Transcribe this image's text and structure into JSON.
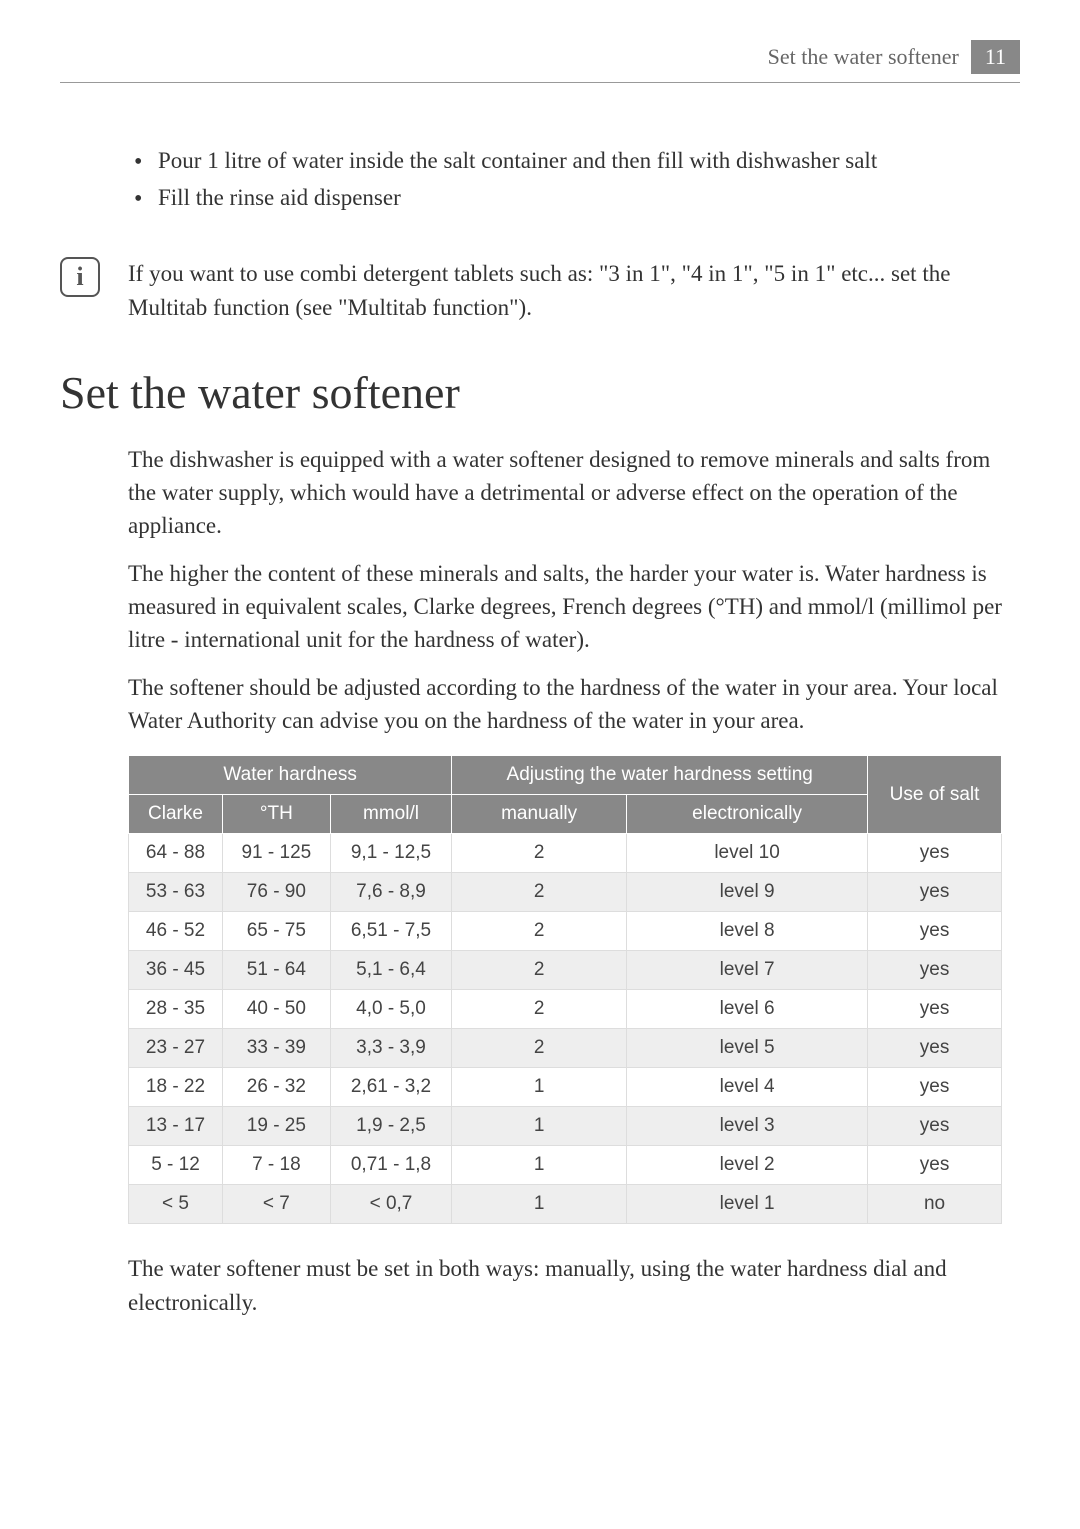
{
  "header": {
    "title": "Set the water softener",
    "page_number": "11"
  },
  "bullets": [
    "Pour 1 litre of water inside the salt container and then fill with dishwasher salt",
    "Fill the rinse aid dispenser"
  ],
  "info_note": "If you want to use combi detergent tablets such as: \"3 in 1\", \"4 in 1\", \"5 in 1\" etc... set the Multitab function (see \"Multitab function\").",
  "section_title": "Set the water softener",
  "paragraphs": [
    "The dishwasher is equipped with a water softener designed to remove minerals and salts from the water supply, which would have a detrimental or adverse effect on the operation of the appliance.",
    "The higher the content of these minerals and salts, the harder your water is. Water hardness is measured in equivalent scales, Clarke degrees, French degrees (°TH) and mmol/l (millimol per litre - international unit for the hardness of water).",
    "The softener should be adjusted according to the hardness of the water in your area. Your local Water Authority can advise you on the hardness of the water in your area."
  ],
  "table": {
    "group_headers": {
      "hardness": "Water hardness",
      "adjusting": "Adjusting the water hardness setting",
      "salt": "Use of salt"
    },
    "sub_headers": {
      "clarke": "Clarke",
      "th": "°TH",
      "mmol": "mmol/l",
      "manually": "manually",
      "electronically": "electronically"
    },
    "rows": [
      {
        "clarke": "64 - 88",
        "th": "91 - 125",
        "mmol": "9,1 - 12,5",
        "manually": "2",
        "electronically": "level 10",
        "salt": "yes"
      },
      {
        "clarke": "53 - 63",
        "th": "76 - 90",
        "mmol": "7,6 - 8,9",
        "manually": "2",
        "electronically": "level 9",
        "salt": "yes"
      },
      {
        "clarke": "46 - 52",
        "th": "65 - 75",
        "mmol": "6,51 - 7,5",
        "manually": "2",
        "electronically": "level 8",
        "salt": "yes"
      },
      {
        "clarke": "36 - 45",
        "th": "51 - 64",
        "mmol": "5,1 - 6,4",
        "manually": "2",
        "electronically": "level 7",
        "salt": "yes"
      },
      {
        "clarke": "28 - 35",
        "th": "40 - 50",
        "mmol": "4,0 - 5,0",
        "manually": "2",
        "electronically": "level 6",
        "salt": "yes"
      },
      {
        "clarke": "23 - 27",
        "th": "33 - 39",
        "mmol": "3,3 - 3,9",
        "manually": "2",
        "electronically": "level 5",
        "salt": "yes"
      },
      {
        "clarke": "18 - 22",
        "th": "26 - 32",
        "mmol": "2,61 - 3,2",
        "manually": "1",
        "electronically": "level 4",
        "salt": "yes"
      },
      {
        "clarke": "13 - 17",
        "th": "19 - 25",
        "mmol": "1,9 - 2,5",
        "manually": "1",
        "electronically": "level 3",
        "salt": "yes"
      },
      {
        "clarke": "5 - 12",
        "th": "7 - 18",
        "mmol": "0,71 - 1,8",
        "manually": "1",
        "electronically": "level 2",
        "salt": "yes"
      },
      {
        "clarke": "< 5",
        "th": "< 7",
        "mmol": "< 0,7",
        "manually": "1",
        "electronically": "level 1",
        "salt": "no"
      }
    ]
  },
  "closing_paragraph": "The water softener must be set in both ways: manually, using the water hardness dial and electronically."
}
